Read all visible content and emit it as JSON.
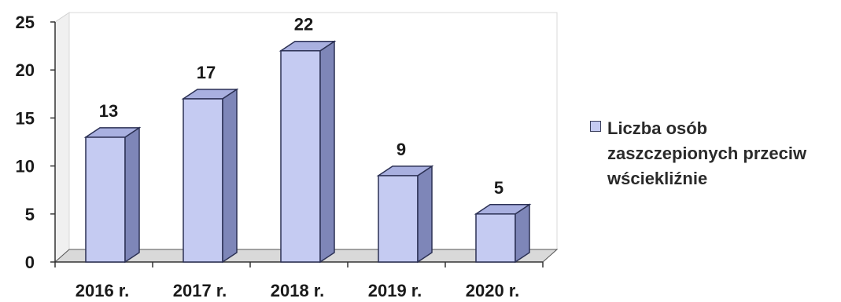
{
  "chart_data": {
    "type": "bar",
    "categories": [
      "2016 r.",
      "2017 r.",
      "2018 r.",
      "2019 r.",
      "2020 r."
    ],
    "series": [
      {
        "name": "Liczba osób zaszczepionych przeciw wściekliźnie",
        "values": [
          13,
          17,
          22,
          9,
          5
        ]
      }
    ],
    "ylim": [
      0,
      25
    ],
    "yticks": [
      0,
      5,
      10,
      15,
      20,
      25
    ],
    "data_labels": [
      "13",
      "17",
      "22",
      "9",
      "5"
    ],
    "legend_position": "right",
    "bar_color": "#c5cbf2",
    "bar_side_color": "#7e86b8",
    "bar_top_color": "#a9b0e0",
    "title": "",
    "xlabel": "",
    "ylabel": ""
  }
}
